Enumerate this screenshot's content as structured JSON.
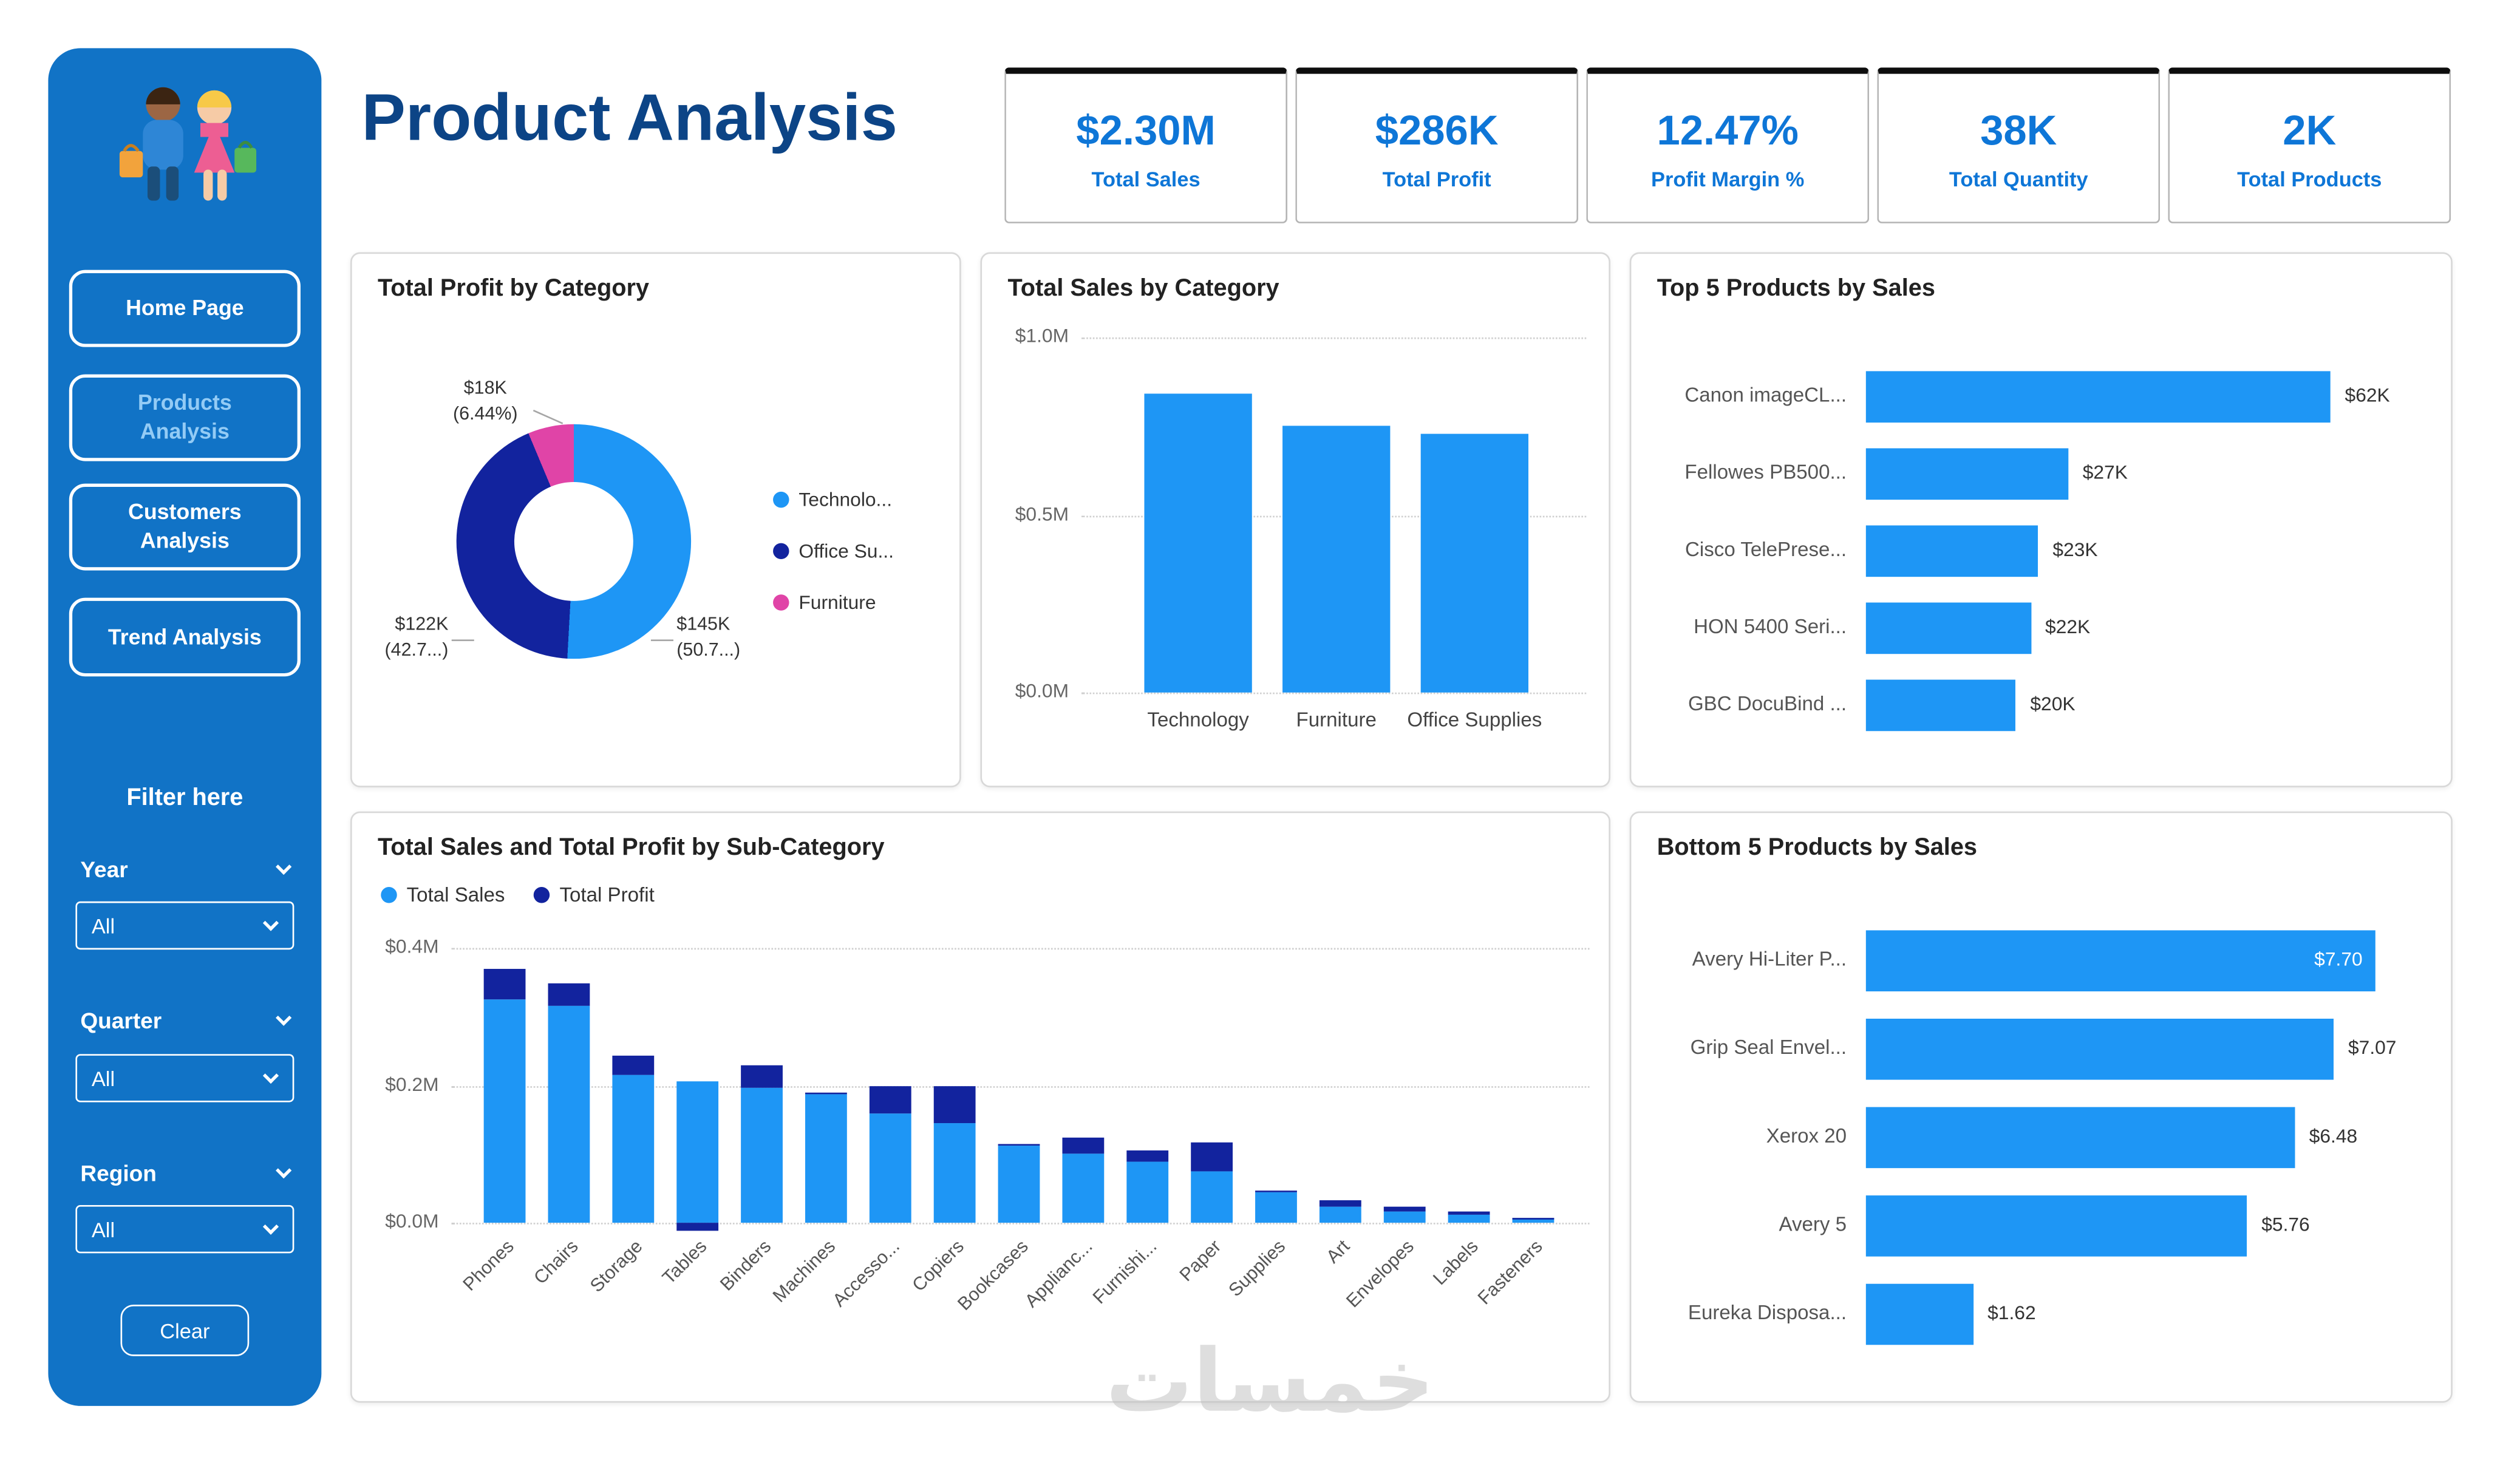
{
  "colors": {
    "sidebar_blue": "#1173C6",
    "bar_blue": "#1E96F5",
    "dark_blue": "#12239E",
    "pink": "#E044A7",
    "kpi_blue": "#0E76D7",
    "title_blue": "#0C4486"
  },
  "sidebar": {
    "nav": [
      {
        "label": "Home Page",
        "active": false
      },
      {
        "label": "Products Analysis",
        "active": true
      },
      {
        "label": "Customers Analysis",
        "active": false
      },
      {
        "label": "Trend Analysis",
        "active": false
      }
    ],
    "filter_title": "Filter here",
    "filters": [
      {
        "label": "Year",
        "value": "All"
      },
      {
        "label": "Quarter",
        "value": "All"
      },
      {
        "label": "Region",
        "value": "All"
      }
    ],
    "clear_label": "Clear"
  },
  "header": {
    "title": "Product Analysis"
  },
  "kpis": [
    {
      "value": "$2.30M",
      "label": "Total Sales"
    },
    {
      "value": "$286K",
      "label": "Total Profit"
    },
    {
      "value": "12.47%",
      "label": "Profit Margin %"
    },
    {
      "value": "38K",
      "label": "Total Quantity"
    },
    {
      "value": "2K",
      "label": "Total Products"
    }
  ],
  "watermark": "خمسات",
  "chart_data": [
    {
      "type": "pie",
      "title": "Total Profit by Category",
      "unit": "K USD",
      "slices": [
        {
          "label": "Technology",
          "legend": "Technolo...",
          "value": 145,
          "pct": 50.7,
          "callout": [
            "$145K",
            "(50.7...)"
          ],
          "color": "#1E96F5"
        },
        {
          "label": "Office Supplies",
          "legend": "Office Su...",
          "value": 122,
          "pct": 42.7,
          "callout": [
            "$122K",
            "(42.7...)"
          ],
          "color": "#12239E"
        },
        {
          "label": "Furniture",
          "legend": "Furniture",
          "value": 18,
          "pct": 6.44,
          "callout": [
            "$18K",
            "(6.44%)"
          ],
          "color": "#E044A7"
        }
      ]
    },
    {
      "type": "bar",
      "title": "Total Sales by Category",
      "categories": [
        "Technology",
        "Furniture",
        "Office Supplies"
      ],
      "values": [
        0.84,
        0.75,
        0.73
      ],
      "ylim": [
        0,
        1.0
      ],
      "yticks": [
        {
          "label": "$1.0M",
          "value": 1.0
        },
        {
          "label": "$0.5M",
          "value": 0.5
        },
        {
          "label": "$0.0M",
          "value": 0.0
        }
      ]
    },
    {
      "type": "hbar",
      "title": "Top 5 Products by Sales",
      "max_value": 62,
      "items": [
        {
          "label": "Canon imageCL...",
          "value": 62,
          "display": "$62K"
        },
        {
          "label": "Fellowes PB500...",
          "value": 27,
          "display": "$27K"
        },
        {
          "label": "Cisco TelePrese...",
          "value": 23,
          "display": "$23K"
        },
        {
          "label": "HON 5400 Seri...",
          "value": 22,
          "display": "$22K"
        },
        {
          "label": "GBC DocuBind ...",
          "value": 20,
          "display": "$20K"
        }
      ]
    },
    {
      "type": "stacked-bar",
      "title": "Total Sales and Total Profit by Sub-Category",
      "legend": [
        {
          "name": "Total Sales",
          "color": "#1E96F5"
        },
        {
          "name": "Total Profit",
          "color": "#12239E"
        }
      ],
      "ylim": [
        0,
        0.4
      ],
      "yticks": [
        {
          "label": "$0.4M",
          "value": 0.4
        },
        {
          "label": "$0.2M",
          "value": 0.2
        },
        {
          "label": "$0.0M",
          "value": 0.0
        }
      ],
      "categories": [
        "Phones",
        "Chairs",
        "Storage",
        "Tables",
        "Binders",
        "Machines",
        "Accesso...",
        "Copiers",
        "Bookcases",
        "Applianc...",
        "Furnishi...",
        "Paper",
        "Supplies",
        "Art",
        "Envelopes",
        "Labels",
        "Fasteners"
      ],
      "series": [
        {
          "name": "Total Sales",
          "values": [
            0.325,
            0.315,
            0.215,
            0.205,
            0.197,
            0.186,
            0.16,
            0.145,
            0.112,
            0.1,
            0.088,
            0.076,
            0.044,
            0.024,
            0.016,
            0.011,
            0.006
          ]
        },
        {
          "name": "Total Profit",
          "values": [
            0.045,
            0.033,
            0.028,
            -0.012,
            0.033,
            0.004,
            0.038,
            0.055,
            0.003,
            0.025,
            0.017,
            0.042,
            0.003,
            0.008,
            0.008,
            0.006,
            0.002
          ]
        }
      ]
    },
    {
      "type": "hbar",
      "title": "Bottom 5 Products by Sales",
      "max_value": 7.7,
      "items": [
        {
          "label": "Avery Hi-Liter P...",
          "value": 7.7,
          "display": "$7.70",
          "label_inside": true
        },
        {
          "label": "Grip Seal Envel...",
          "value": 7.07,
          "display": "$7.07"
        },
        {
          "label": "Xerox 20",
          "value": 6.48,
          "display": "$6.48"
        },
        {
          "label": "Avery 5",
          "value": 5.76,
          "display": "$5.76"
        },
        {
          "label": "Eureka Disposa...",
          "value": 1.62,
          "display": "$1.62"
        }
      ]
    }
  ]
}
